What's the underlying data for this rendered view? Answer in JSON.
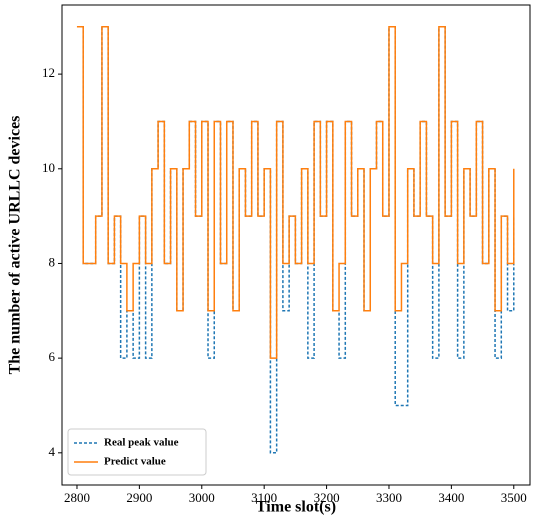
{
  "chart_data": {
    "type": "line",
    "xlabel": "Time slot(s)",
    "ylabel": "The number of active URLLC devices",
    "x": [
      2800,
      2810,
      2820,
      2830,
      2840,
      2850,
      2860,
      2870,
      2880,
      2890,
      2900,
      2910,
      2920,
      2930,
      2940,
      2950,
      2960,
      2970,
      2980,
      2990,
      3000,
      3010,
      3020,
      3030,
      3040,
      3050,
      3060,
      3070,
      3080,
      3090,
      3100,
      3110,
      3120,
      3130,
      3140,
      3150,
      3160,
      3170,
      3180,
      3190,
      3200,
      3210,
      3220,
      3230,
      3240,
      3250,
      3260,
      3270,
      3280,
      3290,
      3300,
      3310,
      3320,
      3330,
      3340,
      3350,
      3360,
      3370,
      3380,
      3390,
      3400,
      3410,
      3420,
      3430,
      3440,
      3450,
      3460,
      3470,
      3480,
      3490,
      3500
    ],
    "series": [
      {
        "name": "Real peak value",
        "color": "#1f77b4",
        "dash": true,
        "values": [
          13,
          8,
          8,
          9,
          13,
          8,
          9,
          6,
          7,
          6,
          9,
          6,
          10,
          11,
          8,
          10,
          7,
          10,
          11,
          9,
          11,
          6,
          11,
          8,
          11,
          7,
          10,
          9,
          11,
          9,
          10,
          4,
          11,
          7,
          9,
          8,
          10,
          6,
          11,
          9,
          11,
          7,
          6,
          11,
          9,
          10,
          7,
          10,
          11,
          9,
          13,
          5,
          5,
          10,
          9,
          11,
          9,
          6,
          13,
          9,
          11,
          6,
          10,
          9,
          11,
          8,
          10,
          6,
          9,
          7,
          9
        ]
      },
      {
        "name": "Predict value",
        "color": "#ff7f0e",
        "dash": false,
        "values": [
          13,
          8,
          8,
          9,
          13,
          8,
          9,
          8,
          7,
          8,
          9,
          8,
          10,
          11,
          8,
          10,
          7,
          10,
          11,
          9,
          11,
          7,
          11,
          8,
          11,
          7,
          10,
          9,
          11,
          9,
          10,
          6,
          11,
          8,
          9,
          8,
          10,
          8,
          11,
          9,
          11,
          7,
          8,
          11,
          9,
          10,
          7,
          10,
          11,
          9,
          13,
          7,
          8,
          10,
          9,
          11,
          9,
          8,
          13,
          9,
          11,
          8,
          10,
          9,
          11,
          8,
          10,
          7,
          9,
          8,
          10
        ]
      }
    ],
    "xlim": [
      2776,
      3526
    ],
    "ylim": [
      3.32,
      13.46
    ],
    "xticks": [
      2800,
      2900,
      3000,
      3100,
      3200,
      3300,
      3400,
      3500
    ],
    "yticks": [
      4,
      6,
      8,
      10,
      12
    ],
    "legend": "lower left"
  }
}
